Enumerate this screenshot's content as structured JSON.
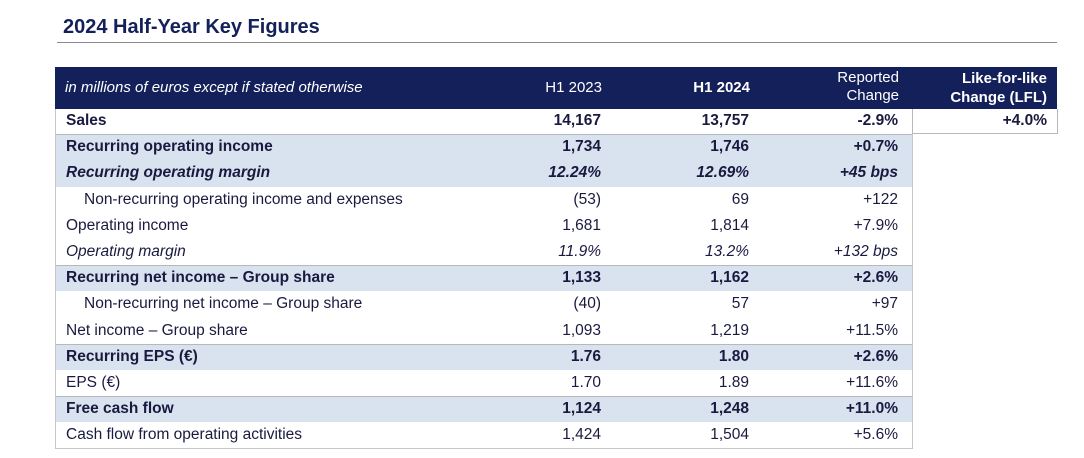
{
  "title": "2024 Half-Year Key Figures",
  "header": {
    "label": "in millions of euros except if stated otherwise",
    "col_h1_2023": "H1 2023",
    "col_h1_2024": "H1 2024",
    "col_reported_line1": "Reported",
    "col_reported_line2": "Change",
    "col_lfl_line1": "Like-for-like",
    "col_lfl_line2": "Change (LFL)"
  },
  "lfl_sales": "+4.0%",
  "rows": [
    {
      "label": "Sales",
      "h1_2023": "14,167",
      "h1_2024": "13,757",
      "change": "-2.9%"
    },
    {
      "label": "Recurring operating income",
      "h1_2023": "1,734",
      "h1_2024": "1,746",
      "change": "+0.7%"
    },
    {
      "label": "Recurring operating margin",
      "h1_2023": "12.24%",
      "h1_2024": "12.69%",
      "change": "+45 bps"
    },
    {
      "label": "Non-recurring operating income and expenses",
      "h1_2023": "(53)",
      "h1_2024": "69",
      "change": "+122"
    },
    {
      "label": "Operating income",
      "h1_2023": "1,681",
      "h1_2024": "1,814",
      "change": "+7.9%"
    },
    {
      "label": "Operating margin",
      "h1_2023": "11.9%",
      "h1_2024": "13.2%",
      "change": "+132 bps"
    },
    {
      "label": "Recurring net income – Group share",
      "h1_2023": "1,133",
      "h1_2024": "1,162",
      "change": "+2.6%"
    },
    {
      "label": "Non-recurring net income – Group share",
      "h1_2023": "(40)",
      "h1_2024": "57",
      "change": "+97"
    },
    {
      "label": "Net income – Group share",
      "h1_2023": "1,093",
      "h1_2024": "1,219",
      "change": "+11.5%"
    },
    {
      "label": "Recurring EPS (€)",
      "h1_2023": "1.76",
      "h1_2024": "1.80",
      "change": "+2.6%"
    },
    {
      "label": "EPS (€)",
      "h1_2023": "1.70",
      "h1_2024": "1.89",
      "change": "+11.6%"
    },
    {
      "label": "Free cash flow",
      "h1_2023": "1,124",
      "h1_2024": "1,248",
      "change": "+11.0%"
    },
    {
      "label": "Cash flow from operating activities",
      "h1_2023": "1,424",
      "h1_2024": "1,504",
      "change": "+5.6%"
    }
  ],
  "colors": {
    "header_bg": "#13205a",
    "shade_bg": "#d9e2ef"
  }
}
